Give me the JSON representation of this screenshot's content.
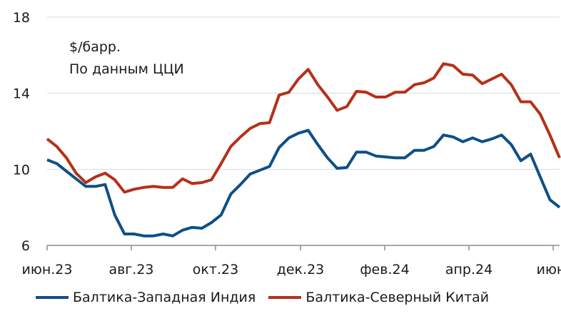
{
  "colors": {
    "west_india": "#0e4f86",
    "north_china": "#b53018",
    "grid": "#d9d9d9",
    "axis": "#8c8c8c"
  },
  "chart_data": {
    "type": "line",
    "title": "",
    "xlabel": "",
    "ylabel": "",
    "annotation": [
      "$/барр.",
      "По данным ЦЦИ"
    ],
    "ylim": [
      6,
      18
    ],
    "yticks": [
      6,
      10,
      14,
      18
    ],
    "xticks": [
      "июн.23",
      "авг.23",
      "окт.23",
      "дек.23",
      "фев.24",
      "апр.24",
      "июн."
    ],
    "x_period": "weekly, 2023-06 to 2024-06",
    "grid": "horizontal",
    "legend_position": "bottom",
    "series": [
      {
        "name": "Балтика-Западная Индия",
        "color": "#0e4f86",
        "values": [
          10.5,
          10.3,
          9.9,
          9.5,
          9.1,
          9.1,
          9.2,
          7.6,
          6.6,
          6.6,
          6.5,
          6.5,
          6.6,
          6.5,
          6.8,
          6.95,
          6.9,
          7.2,
          7.6,
          8.7,
          9.2,
          9.75,
          9.95,
          10.15,
          11.15,
          11.65,
          11.9,
          12.05,
          11.3,
          10.6,
          10.05,
          10.1,
          10.9,
          10.9,
          10.7,
          10.65,
          10.6,
          10.6,
          11.0,
          11.0,
          11.2,
          11.8,
          11.7,
          11.45,
          11.65,
          11.45,
          11.6,
          11.8,
          11.3,
          10.45,
          10.8,
          9.6,
          8.4,
          8.0
        ]
      },
      {
        "name": "Балтика-Северный Китай",
        "color": "#b53018",
        "values": [
          11.6,
          11.2,
          10.6,
          9.8,
          9.3,
          9.6,
          9.8,
          9.45,
          8.8,
          8.95,
          9.05,
          9.1,
          9.05,
          9.05,
          9.5,
          9.25,
          9.3,
          9.45,
          10.3,
          11.2,
          11.7,
          12.15,
          12.4,
          12.45,
          13.9,
          14.05,
          14.75,
          15.25,
          14.45,
          13.8,
          13.1,
          13.3,
          14.1,
          14.05,
          13.8,
          13.8,
          14.05,
          14.05,
          14.45,
          14.55,
          14.8,
          15.55,
          15.45,
          15.0,
          14.95,
          14.5,
          14.75,
          15.0,
          14.45,
          13.55,
          13.55,
          12.9,
          11.8,
          10.6
        ]
      }
    ]
  }
}
